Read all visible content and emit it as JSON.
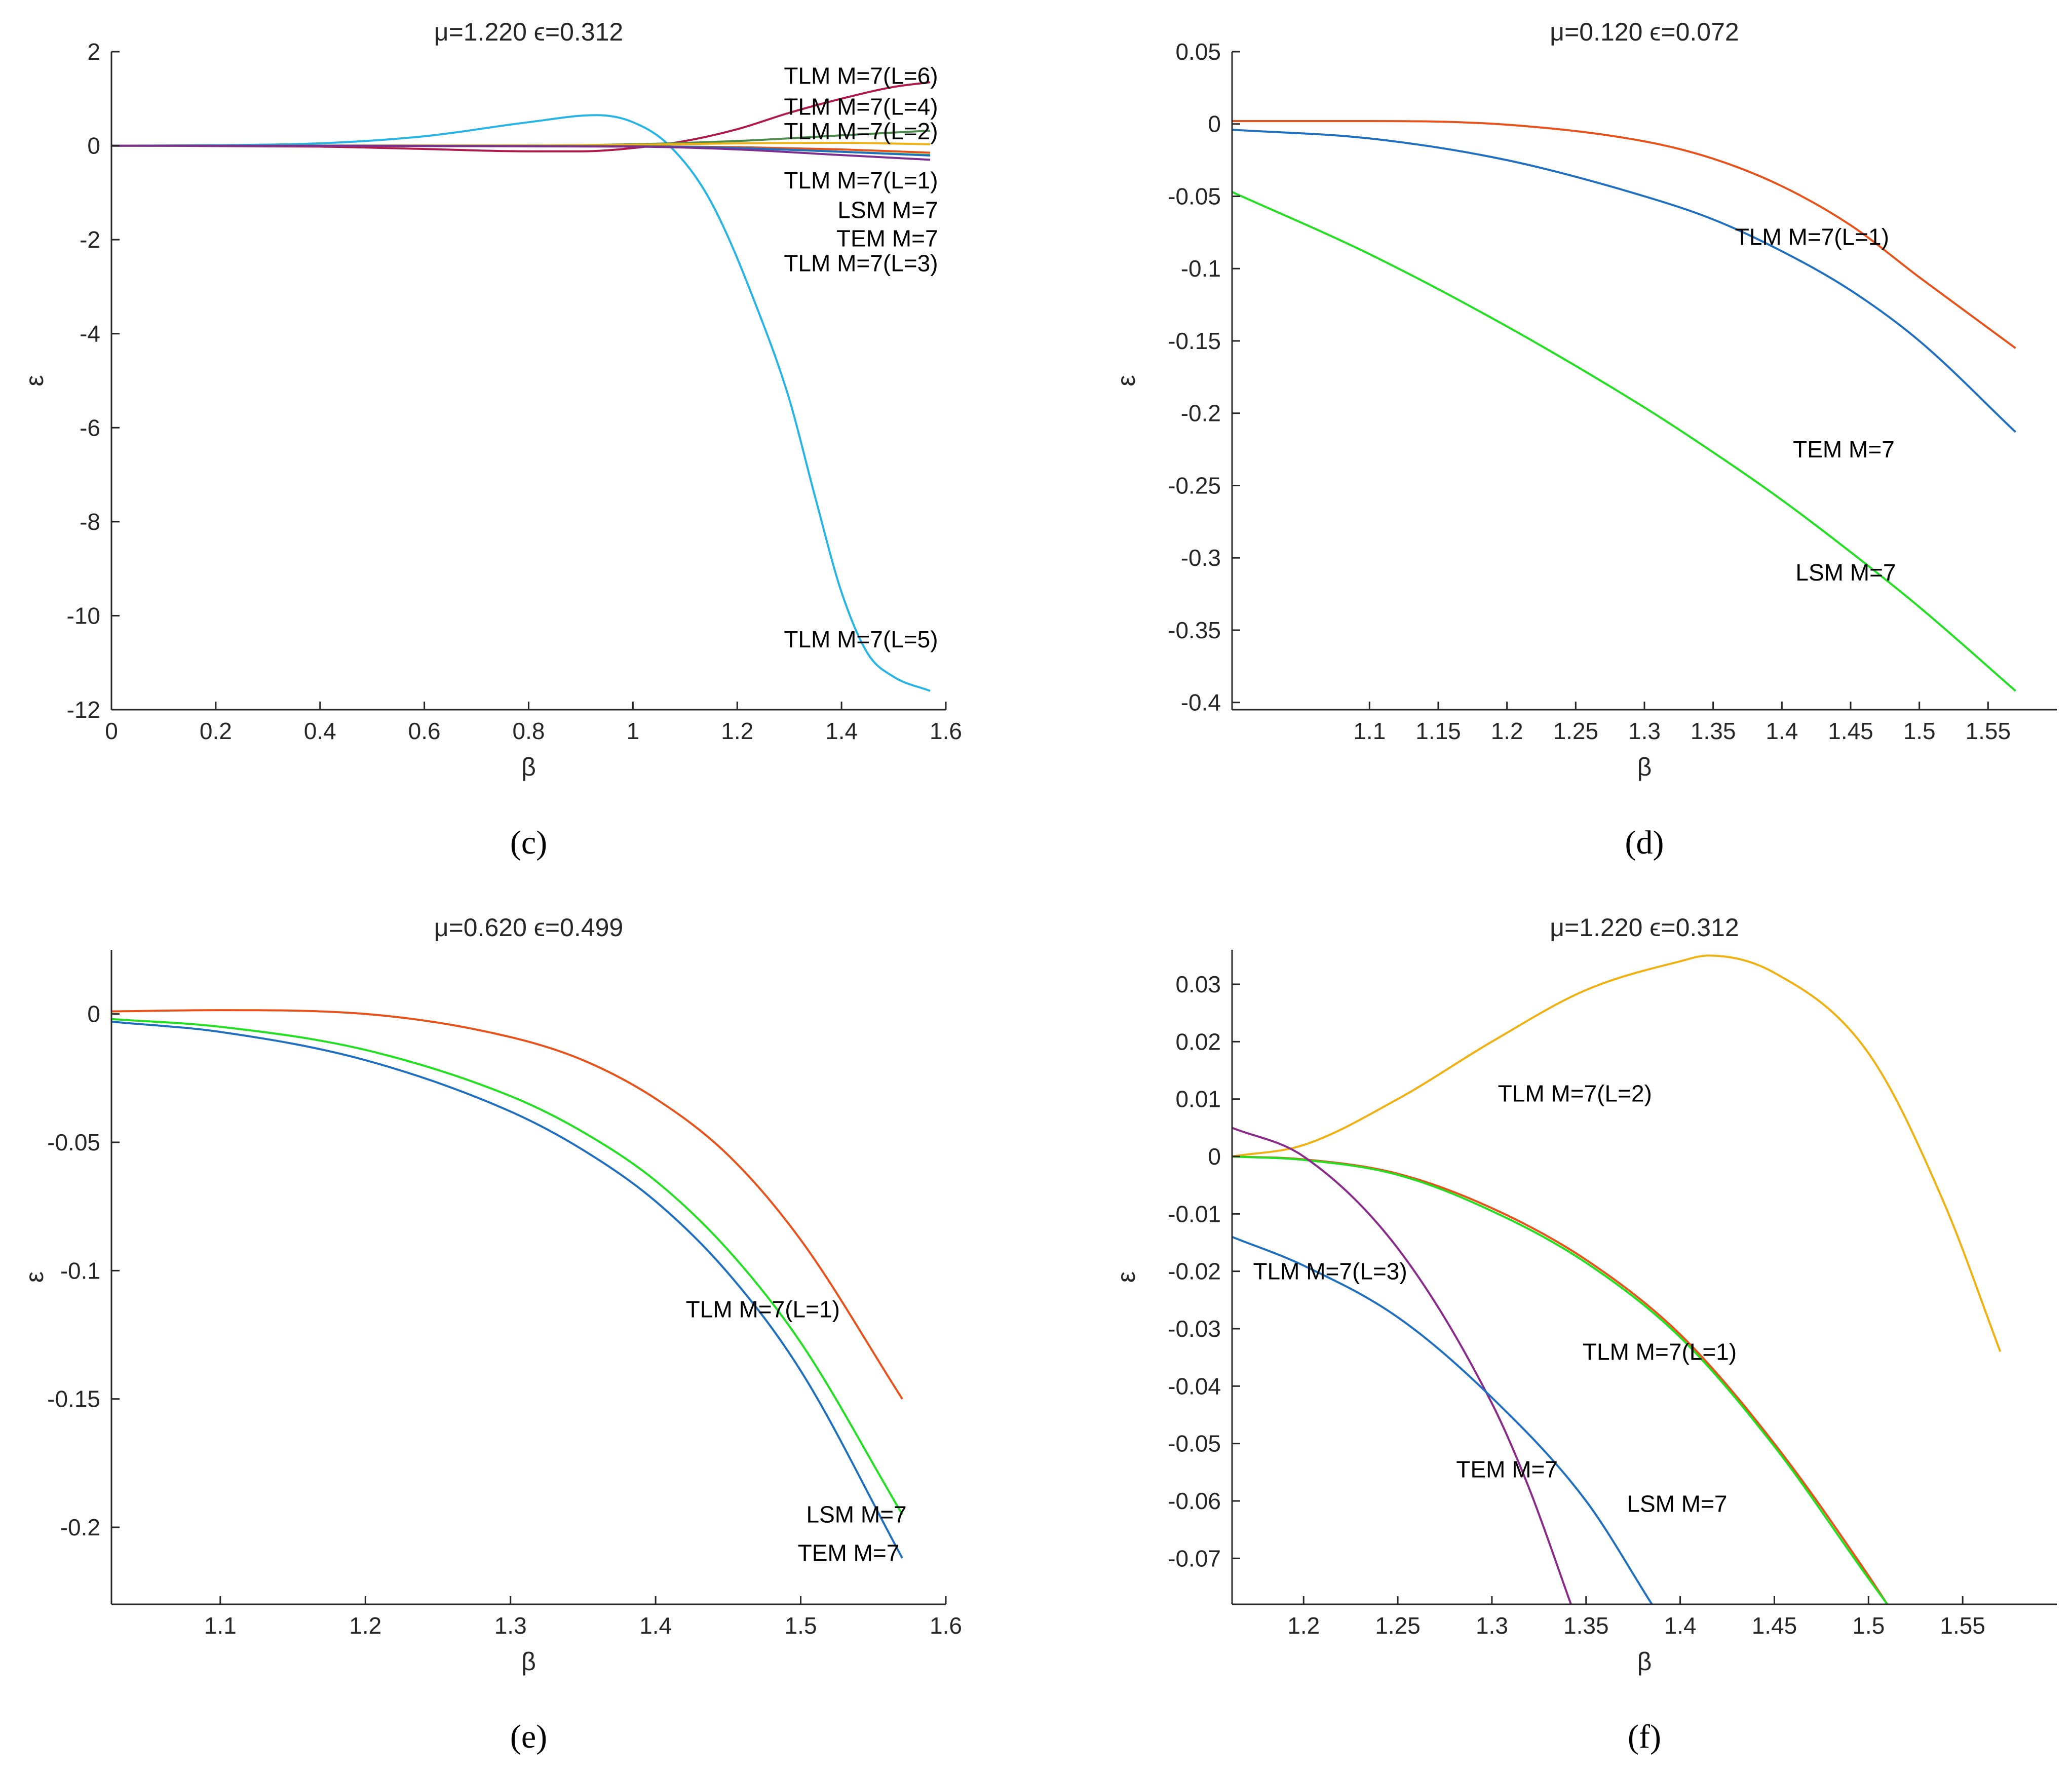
{
  "chart_data": [
    {
      "panel": "c",
      "type": "line",
      "title": "μ=1.220  ϵ=0.312",
      "xlabel": "β",
      "ylabel": "ε",
      "xlim": [
        0,
        1.6
      ],
      "ylim": [
        -12,
        2
      ],
      "xticks": [
        0,
        0.2,
        0.4,
        0.6,
        0.8,
        1,
        1.2,
        1.4,
        1.6
      ],
      "xtick_labels": [
        "0",
        "0.2",
        "0.4",
        "0.6",
        "0.8",
        "1",
        "1.2",
        "1.4",
        "1.6"
      ],
      "yticks": [
        2,
        0,
        -2,
        -4,
        -6,
        -8,
        -10,
        -12
      ],
      "ytick_labels": [
        "2",
        "0",
        "-2",
        "-4",
        "-6",
        "-8",
        "-10",
        "-12"
      ],
      "series": [
        {
          "name": "TLM M=7(L=5)",
          "color": "#26b4e6",
          "x": [
            0,
            0.2,
            0.4,
            0.6,
            0.8,
            0.93,
            1.0,
            1.07,
            1.15,
            1.25,
            1.3,
            1.35,
            1.4,
            1.45,
            1.5,
            1.57
          ],
          "y": [
            0,
            0.01,
            0.05,
            0.2,
            0.5,
            0.65,
            0.5,
            0,
            -1.2,
            -3.8,
            -5.4,
            -7.5,
            -9.5,
            -10.8,
            -11.3,
            -11.6
          ]
        },
        {
          "name": "TLM M=7(L=6)",
          "color": "#b0174a",
          "x": [
            0,
            0.4,
            0.6,
            0.8,
            0.9,
            1.0,
            1.1,
            1.2,
            1.3,
            1.4,
            1.5,
            1.57
          ],
          "y": [
            0,
            -0.02,
            -0.07,
            -0.12,
            -0.12,
            -0.05,
            0.1,
            0.35,
            0.7,
            1.0,
            1.25,
            1.35
          ]
        },
        {
          "name": "TLM M=7(L=4)",
          "color": "#4a8a4a",
          "x": [
            0,
            0.8,
            1.0,
            1.2,
            1.4,
            1.57
          ],
          "y": [
            0,
            0.005,
            0.03,
            0.1,
            0.22,
            0.32
          ]
        },
        {
          "name": "TLM M=7(L=2)",
          "color": "#f0b010",
          "x": [
            0,
            0.8,
            1.0,
            1.2,
            1.4,
            1.57
          ],
          "y": [
            0,
            0.005,
            0.02,
            0.05,
            0.06,
            0.03
          ]
        },
        {
          "name": "TLM M=7(L=1)",
          "color": "#e8521a",
          "x": [
            0,
            1.0,
            1.2,
            1.4,
            1.57
          ],
          "y": [
            0,
            -0.01,
            -0.03,
            -0.08,
            -0.15
          ]
        },
        {
          "name": "LSM M=7",
          "color": "#20e020",
          "x": [
            0,
            1.0,
            1.2,
            1.4,
            1.57
          ],
          "y": [
            0,
            -0.015,
            -0.05,
            -0.13,
            -0.2
          ]
        },
        {
          "name": "TEM M=7",
          "color": "#1f6fc0",
          "x": [
            0,
            1.0,
            1.2,
            1.4,
            1.57
          ],
          "y": [
            0,
            -0.015,
            -0.05,
            -0.13,
            -0.21
          ]
        },
        {
          "name": "TLM M=7(L=3)",
          "color": "#7e2e8e",
          "x": [
            0,
            1.0,
            1.2,
            1.4,
            1.57
          ],
          "y": [
            0,
            -0.02,
            -0.08,
            -0.2,
            -0.3
          ]
        }
      ],
      "annotations": [
        {
          "text": "TLM M=7(L=6)",
          "x": 1.585,
          "y": 1.49
        },
        {
          "text": "TLM M=7(L=4)",
          "x": 1.585,
          "y": 0.83
        },
        {
          "text": "TLM M=7(L=2)",
          "x": 1.585,
          "y": 0.31
        },
        {
          "text": "TLM M=7(L=1)",
          "x": 1.585,
          "y": -0.74
        },
        {
          "text": "LSM M=7",
          "x": 1.585,
          "y": -1.37
        },
        {
          "text": "TEM M=7",
          "x": 1.585,
          "y": -1.97
        },
        {
          "text": "TLM M=7(L=3)",
          "x": 1.585,
          "y": -2.5
        },
        {
          "text": "TLM M=7(L=5)",
          "x": 1.585,
          "y": -10.5
        }
      ],
      "panel_label": "(c)"
    },
    {
      "panel": "d",
      "type": "line",
      "title": "μ=0.120  ϵ=0.072",
      "xlabel": "β",
      "ylabel": "ε",
      "xlim": [
        1.0,
        1.6
      ],
      "ylim": [
        -0.405,
        0.05
      ],
      "xticks": [
        1.1,
        1.15,
        1.2,
        1.25,
        1.3,
        1.35,
        1.4,
        1.45,
        1.5,
        1.55
      ],
      "xtick_labels": [
        "1.1",
        "1.15",
        "1.2",
        "1.25",
        "1.3",
        "1.35",
        "1.4",
        "1.45",
        "1.5",
        "1.55"
      ],
      "yticks": [
        0.05,
        0,
        -0.05,
        -0.1,
        -0.15,
        -0.2,
        -0.25,
        -0.3,
        -0.35,
        -0.4
      ],
      "ytick_labels": [
        "0.05",
        "0",
        "-0.05",
        "-0.1",
        "-0.15",
        "-0.2",
        "-0.25",
        "-0.3",
        "-0.35",
        "-0.4"
      ],
      "series": [
        {
          "name": "TLM M=7(L=1)",
          "color": "#e8521a",
          "x": [
            1.0,
            1.1,
            1.2,
            1.3,
            1.35,
            1.4,
            1.45,
            1.5,
            1.57
          ],
          "y": [
            0.002,
            0.002,
            -0.0005,
            -0.012,
            -0.024,
            -0.043,
            -0.07,
            -0.106,
            -0.155
          ]
        },
        {
          "name": "TEM M=7",
          "color": "#1f6fc0",
          "x": [
            1.0,
            1.1,
            1.2,
            1.3,
            1.35,
            1.4,
            1.45,
            1.5,
            1.57
          ],
          "y": [
            -0.004,
            -0.01,
            -0.025,
            -0.05,
            -0.066,
            -0.088,
            -0.115,
            -0.15,
            -0.213
          ]
        },
        {
          "name": "LSM M=7",
          "color": "#20e020",
          "x": [
            1.0,
            1.1,
            1.2,
            1.3,
            1.35,
            1.4,
            1.45,
            1.5,
            1.57
          ],
          "y": [
            -0.047,
            -0.09,
            -0.14,
            -0.196,
            -0.227,
            -0.26,
            -0.296,
            -0.334,
            -0.392
          ]
        }
      ],
      "annotations": [
        {
          "text": "TLM M=7(L=1)",
          "x": 1.478,
          "y": -0.078
        },
        {
          "text": "TEM M=7",
          "x": 1.482,
          "y": -0.225
        },
        {
          "text": "LSM M=7",
          "x": 1.483,
          "y": -0.31
        }
      ],
      "panel_label": "(d)"
    },
    {
      "panel": "e",
      "type": "line",
      "title": "μ=0.620  ϵ=0.499",
      "xlabel": "β",
      "ylabel": "ε",
      "xlim": [
        1.025,
        1.6
      ],
      "ylim": [
        -0.23,
        0.025
      ],
      "xticks": [
        1.1,
        1.2,
        1.3,
        1.4,
        1.5,
        1.6
      ],
      "xtick_labels": [
        "1.1",
        "1.2",
        "1.3",
        "1.4",
        "1.5",
        "1.6"
      ],
      "yticks": [
        0,
        -0.05,
        -0.1,
        -0.15,
        -0.2
      ],
      "ytick_labels": [
        "0",
        "-0.05",
        "-0.1",
        "-0.15",
        "-0.2"
      ],
      "series": [
        {
          "name": "TLM M=7(L=1)",
          "color": "#e8521a",
          "x": [
            1.025,
            1.1,
            1.2,
            1.3,
            1.35,
            1.4,
            1.45,
            1.5,
            1.57
          ],
          "y": [
            0.001,
            0.0015,
            0,
            -0.009,
            -0.018,
            -0.033,
            -0.055,
            -0.088,
            -0.15
          ]
        },
        {
          "name": "LSM M=7",
          "color": "#20e020",
          "x": [
            1.025,
            1.1,
            1.2,
            1.3,
            1.35,
            1.4,
            1.45,
            1.5,
            1.57
          ],
          "y": [
            -0.002,
            -0.005,
            -0.014,
            -0.032,
            -0.046,
            -0.065,
            -0.092,
            -0.128,
            -0.195
          ]
        },
        {
          "name": "TEM M=7",
          "color": "#1f6fc0",
          "x": [
            1.025,
            1.1,
            1.2,
            1.3,
            1.35,
            1.4,
            1.45,
            1.5,
            1.57
          ],
          "y": [
            -0.003,
            -0.007,
            -0.018,
            -0.038,
            -0.053,
            -0.073,
            -0.101,
            -0.139,
            -0.212
          ]
        }
      ],
      "annotations": [
        {
          "text": "TLM M=7(L=1)",
          "x": 1.527,
          "y": -0.115
        },
        {
          "text": "LSM M=7",
          "x": 1.573,
          "y": -0.195
        },
        {
          "text": "TEM M=7",
          "x": 1.568,
          "y": -0.21
        }
      ],
      "panel_label": "(e)"
    },
    {
      "panel": "f",
      "type": "line",
      "title": "μ=1.220  ϵ=0.312",
      "xlabel": "β",
      "ylabel": "ε",
      "xlim": [
        1.162,
        1.6
      ],
      "ylim": [
        -0.078,
        0.036
      ],
      "xticks": [
        1.2,
        1.25,
        1.3,
        1.35,
        1.4,
        1.45,
        1.5,
        1.55
      ],
      "xtick_labels": [
        "1.2",
        "1.25",
        "1.3",
        "1.35",
        "1.4",
        "1.45",
        "1.5",
        "1.55"
      ],
      "yticks": [
        0.03,
        0.02,
        0.01,
        0,
        -0.01,
        -0.02,
        -0.03,
        -0.04,
        -0.05,
        -0.06,
        -0.07
      ],
      "ytick_labels": [
        "0.03",
        "0.02",
        "0.01",
        "0",
        "-0.01",
        "-0.02",
        "-0.03",
        "-0.04",
        "-0.05",
        "-0.06",
        "-0.07"
      ],
      "series": [
        {
          "name": "TLM M=7(L=2)",
          "color": "#f0b010",
          "x": [
            1.162,
            1.2,
            1.25,
            1.3,
            1.35,
            1.4,
            1.415,
            1.45,
            1.5,
            1.54,
            1.57
          ],
          "y": [
            0,
            0.002,
            0.01,
            0.02,
            0.029,
            0.034,
            0.035,
            0.032,
            0.018,
            -0.008,
            -0.034
          ]
        },
        {
          "name": "TLM M=7(L=1)",
          "color": "#e8521a",
          "x": [
            1.162,
            1.2,
            1.25,
            1.3,
            1.35,
            1.4,
            1.45,
            1.5,
            1.51
          ],
          "y": [
            0,
            -0.0005,
            -0.003,
            -0.009,
            -0.018,
            -0.031,
            -0.05,
            -0.073,
            -0.078
          ]
        },
        {
          "name": "LSM M=7",
          "color": "#20e020",
          "x": [
            1.162,
            1.2,
            1.25,
            1.3,
            1.35,
            1.4,
            1.45,
            1.5,
            1.51
          ],
          "y": [
            0,
            -0.0006,
            -0.0032,
            -0.0095,
            -0.0185,
            -0.0315,
            -0.0505,
            -0.0735,
            -0.078
          ]
        },
        {
          "name": "TLM M=7(L=3)",
          "color": "#8a2a8a",
          "x": [
            1.162,
            1.2,
            1.25,
            1.3,
            1.32,
            1.342
          ],
          "y": [
            0.005,
            0,
            -0.016,
            -0.043,
            -0.058,
            -0.078
          ]
        },
        {
          "name": "TEM M=7",
          "color": "#1f6fc0",
          "x": [
            1.162,
            1.2,
            1.25,
            1.3,
            1.35,
            1.385
          ],
          "y": [
            -0.014,
            -0.019,
            -0.028,
            -0.042,
            -0.06,
            -0.078
          ]
        }
      ],
      "annotations": [
        {
          "text": "TLM M=7(L=2)",
          "x": 1.385,
          "y": 0.011
        },
        {
          "text": "TLM M=7(L=3)",
          "x": 1.255,
          "y": -0.02
        },
        {
          "text": "TLM M=7(L=1)",
          "x": 1.43,
          "y": -0.034
        },
        {
          "text": "TEM M=7",
          "x": 1.335,
          "y": -0.0545
        },
        {
          "text": "LSM M=7",
          "x": 1.425,
          "y": -0.0605
        }
      ],
      "panel_label": "(f)"
    }
  ]
}
